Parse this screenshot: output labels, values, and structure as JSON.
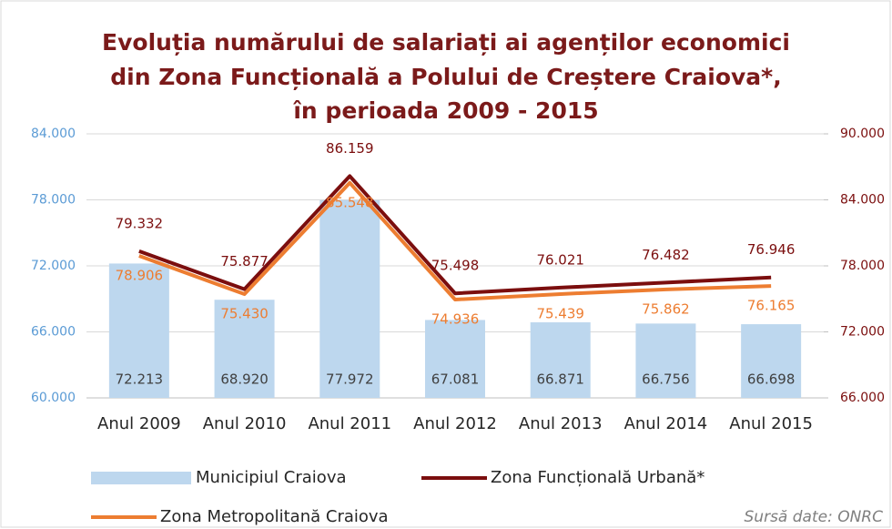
{
  "chart_data": {
    "type": "bar_line",
    "title": [
      "Evoluția numărului de salariați ai agenților economici",
      "din Zona Funcțională a Polului de Creștere Craiova*,",
      "în perioada 2009 - 2015"
    ],
    "categories": [
      "Anul 2009",
      "Anul 2010",
      "Anul 2011",
      "Anul 2012",
      "Anul 2013",
      "Anul 2014",
      "Anul 2015"
    ],
    "series": [
      {
        "name": "Municipiul Craiova",
        "type": "bar",
        "color": "#bdd7ee",
        "label_color": "#404040",
        "values": [
          72213,
          68920,
          77972,
          67081,
          66871,
          66756,
          66698
        ],
        "value_labels": [
          "72.213",
          "68.920",
          "77.972",
          "67.081",
          "66.871",
          "66.756",
          "66.698"
        ]
      },
      {
        "name": "Zona Funcțională Urbană*",
        "type": "line",
        "axis": "y2",
        "color": "#7b0e0e",
        "label_color": "#7b0e0e",
        "values": [
          79332,
          75877,
          86159,
          75498,
          76021,
          76482,
          76946
        ],
        "value_labels": [
          "79.332",
          "75.877",
          "86.159",
          "75.498",
          "76.021",
          "76.482",
          "76.946"
        ]
      },
      {
        "name": "Zona Metropolitană Craiova",
        "type": "line",
        "axis": "y2",
        "color": "#ed7d31",
        "label_color": "#ed7d31",
        "values": [
          78906,
          75430,
          85548,
          74936,
          75439,
          75862,
          76165
        ],
        "value_labels": [
          "78.906",
          "75.430",
          "85.548",
          "74.936",
          "75.439",
          "75.862",
          "76.165"
        ]
      }
    ],
    "ylim": [
      60000,
      84000
    ],
    "yticks": [
      {
        "value": 60000,
        "label": "60.000"
      },
      {
        "value": 66000,
        "label": "66.000"
      },
      {
        "value": 72000,
        "label": "72.000"
      },
      {
        "value": 78000,
        "label": "78.000"
      },
      {
        "value": 84000,
        "label": "84.000"
      }
    ],
    "y2lim": [
      66000,
      90000
    ],
    "y2ticks": [
      {
        "value": 66000,
        "label": "66.000"
      },
      {
        "value": 72000,
        "label": "72.000"
      },
      {
        "value": 78000,
        "label": "78.000"
      },
      {
        "value": 84000,
        "label": "84.000"
      },
      {
        "value": 90000,
        "label": "90.000"
      }
    ],
    "grid": true,
    "legend": "bottom",
    "source": "Sursă date: ONRC"
  }
}
